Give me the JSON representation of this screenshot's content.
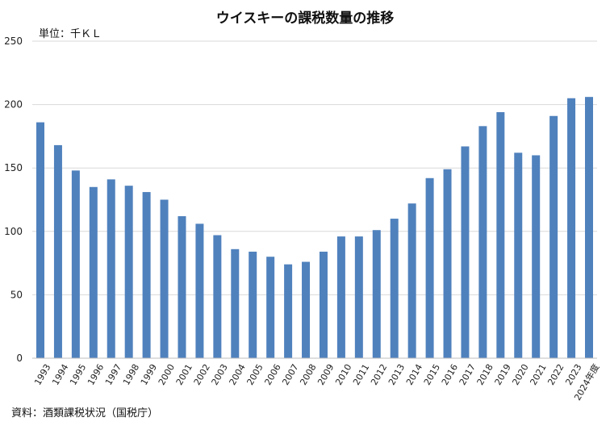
{
  "chart_data": {
    "type": "bar",
    "title": "ウイスキーの課税数量の推移",
    "unit_label": "単位：千ＫＬ",
    "source": "資料：酒類課税状況（国税庁）",
    "xlabel": "",
    "ylabel": "",
    "ylim": [
      0,
      250
    ],
    "yticks": [
      0,
      50,
      100,
      150,
      200,
      250
    ],
    "grid": true,
    "color": "#4f81bd",
    "categories": [
      "1993",
      "1994",
      "1995",
      "1996",
      "1997",
      "1998",
      "1999",
      "2000",
      "2001",
      "2002",
      "2003",
      "2004",
      "2005",
      "2006",
      "2007",
      "2008",
      "2009",
      "2010",
      "2011",
      "2012",
      "2013",
      "2014",
      "2015",
      "2016",
      "2017",
      "2018",
      "2019",
      "2020",
      "2021",
      "2022",
      "2023",
      "2024年度"
    ],
    "values": [
      186,
      168,
      148,
      135,
      141,
      136,
      131,
      125,
      112,
      106,
      97,
      86,
      84,
      80,
      74,
      76,
      84,
      96,
      96,
      101,
      110,
      122,
      142,
      149,
      167,
      183,
      194,
      162,
      160,
      191,
      205,
      206
    ]
  }
}
